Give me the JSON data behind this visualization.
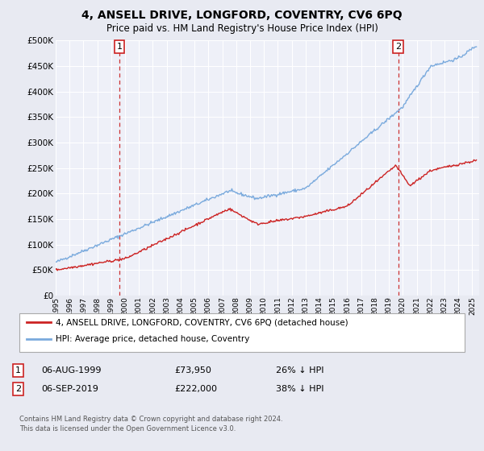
{
  "title": "4, ANSELL DRIVE, LONGFORD, COVENTRY, CV6 6PQ",
  "subtitle": "Price paid vs. HM Land Registry's House Price Index (HPI)",
  "ylim": [
    0,
    500000
  ],
  "yticks": [
    0,
    50000,
    100000,
    150000,
    200000,
    250000,
    300000,
    350000,
    400000,
    450000,
    500000
  ],
  "background_color": "#e8eaf2",
  "plot_bg_color": "#eef0f8",
  "grid_color": "#ffffff",
  "sale1_date_num": 1999.6,
  "sale1_label": "1",
  "sale2_date_num": 2019.68,
  "sale2_label": "2",
  "hpi_color": "#7aaadd",
  "price_color": "#cc2222",
  "vline_color": "#cc3333",
  "legend_label_price": "4, ANSELL DRIVE, LONGFORD, COVENTRY, CV6 6PQ (detached house)",
  "legend_label_hpi": "HPI: Average price, detached house, Coventry",
  "annotation1_date": "06-AUG-1999",
  "annotation1_price": "£73,950",
  "annotation1_hpi": "26% ↓ HPI",
  "annotation2_date": "06-SEP-2019",
  "annotation2_price": "£222,000",
  "annotation2_hpi": "38% ↓ HPI",
  "footnote": "Contains HM Land Registry data © Crown copyright and database right 2024.\nThis data is licensed under the Open Government Licence v3.0.",
  "xmin": 1995.0,
  "xmax": 2025.5
}
